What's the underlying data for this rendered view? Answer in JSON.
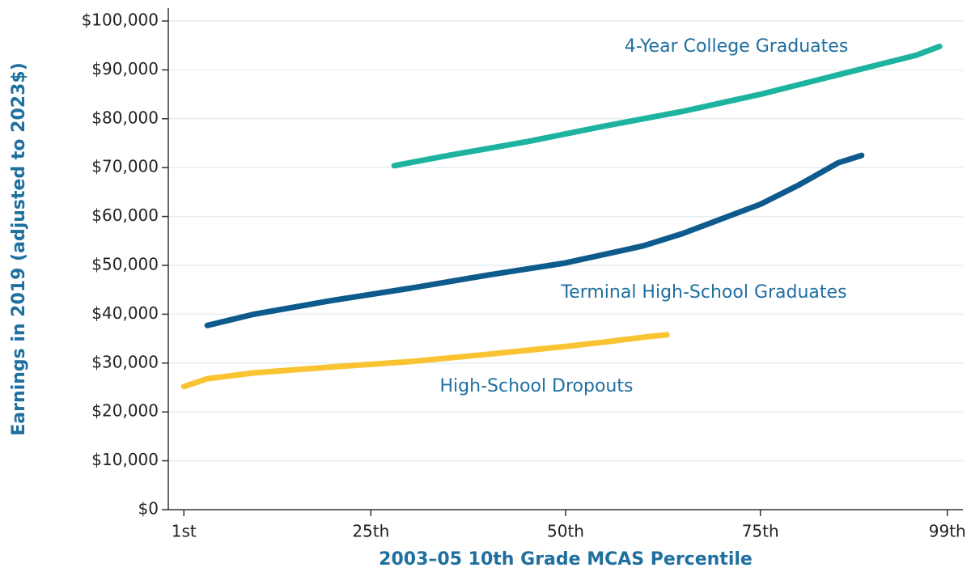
{
  "chart_data": {
    "type": "line",
    "x_label": "2003–05 10th Grade MCAS Percentile",
    "y_label": "Earnings in 2019 (adjusted to 2023$)",
    "series": [
      {
        "name": "High-School Dropouts",
        "color": "#f9c332",
        "x": [
          1,
          4,
          10,
          20,
          30,
          40,
          50,
          55,
          60,
          63
        ],
        "values": [
          25200,
          26800,
          28000,
          29200,
          30300,
          31800,
          33400,
          34300,
          35300,
          35800
        ]
      },
      {
        "name": "Terminal High-School Graduates",
        "color": "#0d5a8c",
        "x": [
          4,
          10,
          20,
          30,
          40,
          50,
          60,
          65,
          70,
          75,
          80,
          85,
          88
        ],
        "values": [
          37700,
          40000,
          42800,
          45300,
          48000,
          50500,
          54000,
          56500,
          59500,
          62500,
          66500,
          71000,
          72500
        ]
      },
      {
        "name": "4-Year College Graduates",
        "color": "#1db39f",
        "x": [
          28,
          35,
          45,
          55,
          65,
          75,
          85,
          95,
          98
        ],
        "values": [
          70400,
          72500,
          75300,
          78500,
          81500,
          85000,
          89000,
          93000,
          94800
        ]
      }
    ],
    "xlim": [
      -1,
      101
    ],
    "xticks": [
      {
        "value": 1,
        "label": "1st"
      },
      {
        "value": 25,
        "label": "25th"
      },
      {
        "value": 50,
        "label": "50th"
      },
      {
        "value": 75,
        "label": "75th"
      },
      {
        "value": 99,
        "label": "99th"
      }
    ],
    "ylim": [
      0,
      100000
    ],
    "yticks": [
      {
        "value": 0,
        "label": "$0"
      },
      {
        "value": 10000,
        "label": "$10,000"
      },
      {
        "value": 20000,
        "label": "$20,000"
      },
      {
        "value": 30000,
        "label": "$30,000"
      },
      {
        "value": 40000,
        "label": "$40,000"
      },
      {
        "value": 50000,
        "label": "$50,000"
      },
      {
        "value": 60000,
        "label": "$60,000"
      },
      {
        "value": 70000,
        "label": "$70,000"
      },
      {
        "value": 80000,
        "label": "$80,000"
      },
      {
        "value": 90000,
        "label": "$90,000"
      },
      {
        "value": 100000,
        "label": "$100,000"
      }
    ],
    "grid": true
  }
}
